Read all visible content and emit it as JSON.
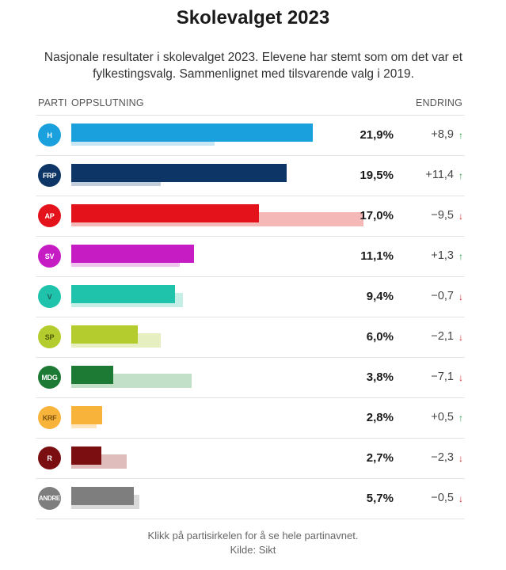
{
  "chart_data": {
    "type": "bar",
    "title": "Skolevalget 2023",
    "subtitle": "Nasjonale resultater i skolevalget 2023. Elevene har stemt som om det var et fylkestingsvalg. Sammenlignet med tilsvarende valg i 2019.",
    "columns": {
      "party": "PARTI",
      "support": "OPPSLUTNING",
      "change": "ENDRING"
    },
    "xlim": [
      0,
      29
    ],
    "series": [
      {
        "name": "2023"
      },
      {
        "name": "2019"
      }
    ],
    "parties": [
      {
        "code": "H",
        "value": 21.9,
        "previous": 13.0,
        "value_label": "21,9%",
        "change_label": "+8,9",
        "direction": "up",
        "color": "#1aa1dd",
        "prev_color": "#c8e5f4",
        "text_color": "#ffffff"
      },
      {
        "code": "FRP",
        "value": 19.5,
        "previous": 8.1,
        "value_label": "19,5%",
        "change_label": "+11,4",
        "direction": "up",
        "color": "#0d3566",
        "prev_color": "#c3cedc",
        "text_color": "#ffffff"
      },
      {
        "code": "AP",
        "value": 17.0,
        "previous": 26.5,
        "value_label": "17,0%",
        "change_label": "−9,5",
        "direction": "down",
        "color": "#e3121b",
        "prev_color": "#f4b8b6",
        "text_color": "#ffffff"
      },
      {
        "code": "SV",
        "value": 11.1,
        "previous": 9.8,
        "value_label": "11,1%",
        "change_label": "+1,3",
        "direction": "up",
        "color": "#c61cc4",
        "prev_color": "#efc4ee",
        "text_color": "#ffffff"
      },
      {
        "code": "V",
        "value": 9.4,
        "previous": 10.1,
        "value_label": "9,4%",
        "change_label": "−0,7",
        "direction": "down",
        "color": "#1fc2ab",
        "prev_color": "#c5eee7",
        "text_color": "#1f5b52"
      },
      {
        "code": "SP",
        "value": 6.0,
        "previous": 8.1,
        "value_label": "6,0%",
        "change_label": "−2,1",
        "direction": "down",
        "color": "#b5cc2e",
        "prev_color": "#e6efc0",
        "text_color": "#4b5a0a"
      },
      {
        "code": "MDG",
        "value": 3.8,
        "previous": 10.9,
        "value_label": "3,8%",
        "change_label": "−7,1",
        "direction": "down",
        "color": "#1d7a35",
        "prev_color": "#c2e0c8",
        "text_color": "#ffffff"
      },
      {
        "code": "KRF",
        "value": 2.8,
        "previous": 2.3,
        "value_label": "2,8%",
        "change_label": "+0,5",
        "direction": "up",
        "color": "#f8b33a",
        "prev_color": "#fde6bd",
        "text_color": "#7a5310"
      },
      {
        "code": "R",
        "value": 2.7,
        "previous": 5.0,
        "value_label": "2,7%",
        "change_label": "−2,3",
        "direction": "down",
        "color": "#7a0e10",
        "prev_color": "#e0bdbd",
        "text_color": "#ffffff"
      },
      {
        "code": "ANDRE",
        "value": 5.7,
        "previous": 6.2,
        "value_label": "5,7%",
        "change_label": "−0,5",
        "direction": "down",
        "color": "#7e7e7e",
        "prev_color": "#d9d9d9",
        "text_color": "#ffffff"
      }
    ]
  },
  "footer": {
    "note": "Klikk på partisirkelen for å se hele partinavnet.",
    "source": "Kilde: Sikt"
  },
  "arrows": {
    "up": "↑",
    "down": "↓"
  }
}
